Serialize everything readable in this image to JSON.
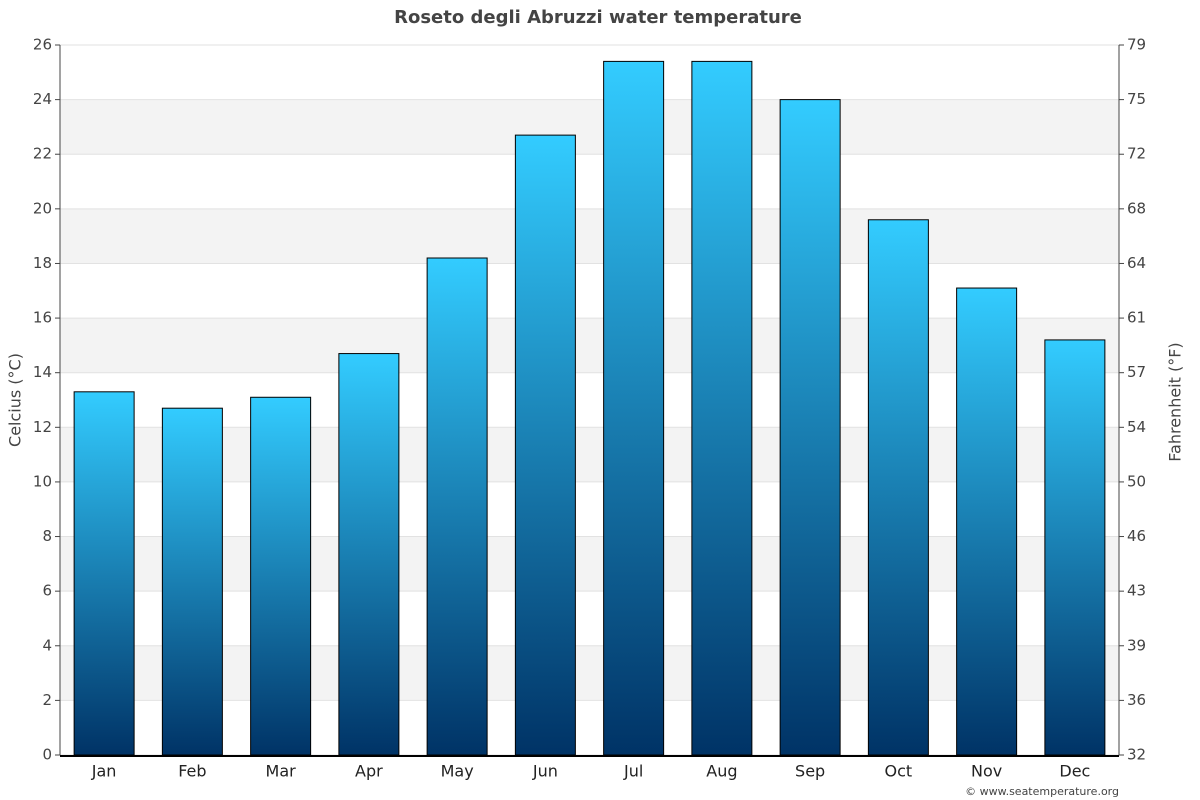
{
  "chart_data": {
    "type": "bar",
    "title": "Roseto degli Abruzzi water temperature",
    "categories": [
      "Jan",
      "Feb",
      "Mar",
      "Apr",
      "May",
      "Jun",
      "Jul",
      "Aug",
      "Sep",
      "Oct",
      "Nov",
      "Dec"
    ],
    "values": [
      13.3,
      12.7,
      13.1,
      14.7,
      18.2,
      22.7,
      25.4,
      25.4,
      24,
      19.6,
      17.1,
      15.2
    ],
    "color": [
      "#33ccff",
      "#003366"
    ],
    "ylabel": "Celcius (°C)",
    "y2label": "Fahrenheit (°F)",
    "ylim": [
      0,
      26
    ],
    "yticks": [
      0,
      2,
      4,
      6,
      8,
      10,
      12,
      14,
      16,
      18,
      20,
      22,
      24,
      26
    ],
    "y2lim": [
      32,
      78.8
    ],
    "y2ticks": [
      32,
      {
        "value": 35.6,
        "label": "36"
      },
      {
        "value": 39.2,
        "label": "39"
      },
      {
        "value": 42.8,
        "label": "43"
      },
      {
        "value": 46.4,
        "label": "46"
      },
      50,
      {
        "value": 53.6,
        "label": "54"
      },
      {
        "value": 57.2,
        "label": "57"
      },
      {
        "value": 60.8,
        "label": "61"
      },
      {
        "value": 64.4,
        "label": "64"
      },
      68,
      {
        "value": 71.6,
        "label": "72"
      },
      {
        "value": 75.2,
        "label": "75"
      },
      {
        "value": 78.8,
        "label": "79"
      }
    ],
    "grid": true,
    "credit": "© www.seatemperature.org"
  }
}
